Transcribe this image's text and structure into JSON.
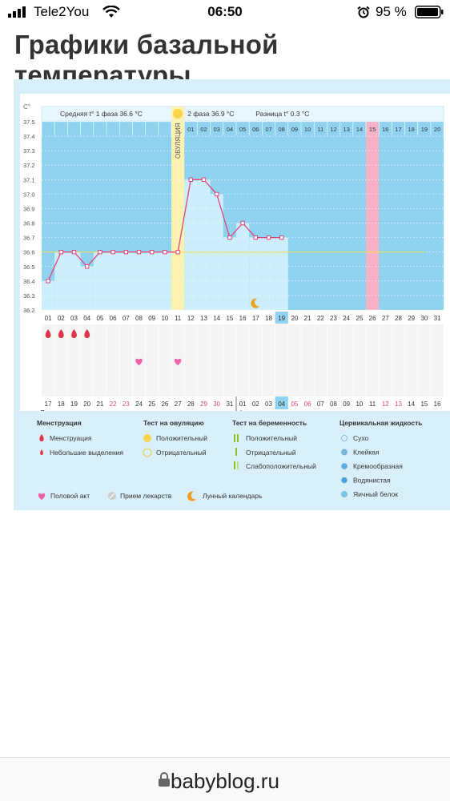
{
  "status_bar": {
    "carrier": "Tele2You",
    "time": "06:50",
    "battery_percent": "95 %"
  },
  "page_title": "Графики базальной температуры",
  "chart_data": {
    "type": "line",
    "y_unit": "C°",
    "ylim": [
      36.2,
      37.5
    ],
    "y_ticks": [
      "37.5",
      "37.4",
      "37.3",
      "37.2",
      "37.1",
      "37.0",
      "36.9",
      "36.8",
      "36.7",
      "36.6",
      "36.5",
      "36.4",
      "36.3",
      "36.2"
    ],
    "phase1_label": "Средняя t° 1 фаза 36.6 °C",
    "phase2_label": "2 фаза 36.9 °C",
    "diff_label": "Разница t° 0.3 °C",
    "ovulation_label": "ОВУЛЯЦИЯ",
    "ovulation_day_index": 10,
    "cycle_days": [
      "01",
      "02",
      "03",
      "04",
      "05",
      "06",
      "07",
      "08",
      "09",
      "10",
      "11",
      "12",
      "13",
      "14",
      "15",
      "16",
      "17",
      "18",
      "19",
      "20",
      "21",
      "22",
      "23",
      "24",
      "25",
      "26",
      "27",
      "28",
      "29",
      "30",
      "31"
    ],
    "post_ovulation_days": [
      "01",
      "02",
      "03",
      "04",
      "05",
      "06",
      "07",
      "08",
      "09",
      "10",
      "11",
      "12",
      "13",
      "14",
      "15",
      "16",
      "17",
      "18",
      "19",
      "20"
    ],
    "highlighted_cycle_day": "19",
    "pink_column_day": "26",
    "pink_column_label": "15",
    "coverline": 36.6,
    "temperatures": [
      36.4,
      36.6,
      36.6,
      36.5,
      36.6,
      36.6,
      36.6,
      36.6,
      36.6,
      36.6,
      36.6,
      37.1,
      37.1,
      37.0,
      36.7,
      36.8,
      36.7,
      36.7,
      36.7
    ],
    "menstruation_days": [
      1,
      2,
      3,
      4
    ],
    "intercourse_days": [
      8,
      11
    ],
    "moon_day": 17,
    "calendar_dates": [
      "17",
      "18",
      "19",
      "20",
      "21",
      "22",
      "23",
      "24",
      "25",
      "26",
      "27",
      "28",
      "29",
      "30",
      "31",
      "01",
      "02",
      "03",
      "04",
      "05",
      "06",
      "07",
      "08",
      "09",
      "10",
      "11",
      "12",
      "13",
      "14",
      "15",
      "16"
    ],
    "weekend_date_indices": [
      5,
      6,
      12,
      13,
      19,
      20,
      26,
      27
    ],
    "highlighted_date": "04",
    "month_jan": "Январь",
    "month_feb": "Февраль"
  },
  "legend": {
    "menstruation": {
      "title": "Менструация",
      "items": [
        "Менструация",
        "Небольшие выделения"
      ]
    },
    "ovulation_test": {
      "title": "Тест на овуляцию",
      "items": [
        "Положительный",
        "Отрицательный"
      ]
    },
    "pregnancy_test": {
      "title": "Тест на беременность",
      "items": [
        "Положительный",
        "Отрицательный",
        "Слабоположительный"
      ]
    },
    "cervical_fluid": {
      "title": "Цервикальная жидкость",
      "items": [
        "Сухо",
        "Клейкая",
        "Кремообразная",
        "Водянистая",
        "Яичный белок"
      ]
    },
    "other": [
      "Половой акт",
      "Прием лекарств",
      "Лунный календарь"
    ]
  },
  "colors": {
    "chart_bg": "#8fd3f0",
    "bar_fill": "#cdeefb",
    "line": "#e0457b",
    "ovulation": "#fbf1b0",
    "pink_column": "#f6b3c8",
    "highlight": "#8fd3f0",
    "weekend_text": "#e0457b"
  },
  "footer": {
    "url": "babyblog.ru"
  }
}
